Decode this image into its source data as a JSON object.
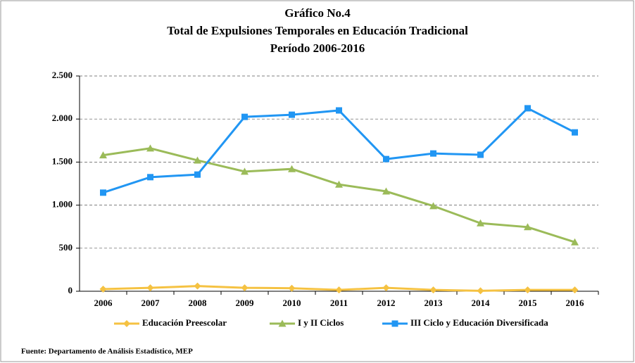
{
  "chart_data": {
    "type": "line",
    "title": "Gráfico No.4",
    "subtitle": [
      "Total de Expulsiones Temporales en Educación Tradicional",
      "Período 2006-2016"
    ],
    "categories": [
      "2006",
      "2007",
      "2008",
      "2009",
      "2010",
      "2011",
      "2012",
      "2013",
      "2014",
      "2015",
      "2016"
    ],
    "series": [
      {
        "name": "Educación Preescolar",
        "color": "#f5c242",
        "marker": "diamond",
        "values": [
          25,
          40,
          60,
          40,
          35,
          15,
          40,
          15,
          5,
          15,
          15
        ]
      },
      {
        "name": "I y II Ciclos",
        "color": "#9bbb59",
        "marker": "triangle",
        "values": [
          1580,
          1660,
          1520,
          1390,
          1420,
          1240,
          1160,
          990,
          790,
          745,
          570
        ]
      },
      {
        "name": "III Ciclo y Educación Diversificada",
        "color": "#2196f3",
        "marker": "square",
        "values": [
          1145,
          1325,
          1355,
          2025,
          2050,
          2100,
          1535,
          1600,
          1585,
          2125,
          1845
        ]
      }
    ],
    "ylim": [
      0,
      2500
    ],
    "yticks": [
      0,
      500,
      {
        "value": 1000,
        "label": "1.000"
      },
      {
        "value": 1500,
        "label": "1.500"
      },
      {
        "value": 2000,
        "label": "2.000"
      },
      {
        "value": 2500,
        "label": "2.500"
      }
    ],
    "grid": true,
    "legend": "bottom",
    "source": "Fuente: Departamento de Análisis Estadístico, MEP"
  }
}
